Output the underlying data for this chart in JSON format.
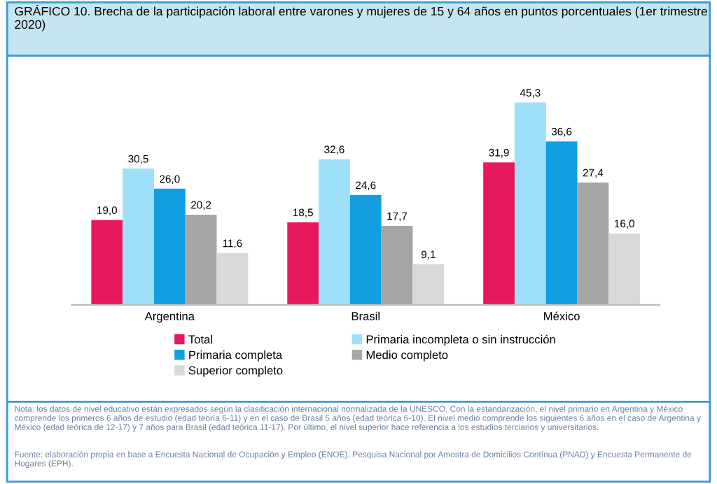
{
  "chart_data": {
    "type": "bar",
    "title": "GRÁFICO 10. Brecha de la participación laboral entre varones y mujeres de 15 y 64 años en puntos porcentuales (1er trimestre 2020)",
    "categories": [
      "Argentina",
      "Brasil",
      "México"
    ],
    "series": [
      {
        "name": "Total",
        "color": "#e8185c",
        "values": [
          19.0,
          18.5,
          31.9
        ],
        "value_labels": [
          "19,0",
          "18,5",
          "31,9"
        ]
      },
      {
        "name": "Primaria incompleta o sin instrucción",
        "color": "#9ee0fa",
        "values": [
          30.5,
          32.6,
          45.3
        ],
        "value_labels": [
          "30,5",
          "32,6",
          "45,3"
        ]
      },
      {
        "name": "Primaria completa",
        "color": "#119fe2",
        "values": [
          26.0,
          24.6,
          36.6
        ],
        "value_labels": [
          "26,0",
          "24,6",
          "36,6"
        ]
      },
      {
        "name": "Medio completo",
        "color": "#a6a6a6",
        "values": [
          20.2,
          17.7,
          27.4
        ],
        "value_labels": [
          "20,2",
          "17,7",
          "27,4"
        ]
      },
      {
        "name": "Superior completo",
        "color": "#d9d9d9",
        "values": [
          11.6,
          9.1,
          16.0
        ],
        "value_labels": [
          "11,6",
          "9,1",
          "16,0"
        ]
      }
    ],
    "legend": "bottom",
    "annotations": [
      "Nota: los datos de nivel educativo están expresados según la clasificación internacional normalizada de la UNESCO. Con la estandarización, el nivel primario en Argentina y México comprende los primeros 6 años de estudio (edad teoría 6-11) y en el caso de Brasil 5 años (edad teórica 6-10). El nivel medio comprende los siguientes 6 años en el caso de Argentina y México (edad teórica de 12-17) y 7 años para Brasil (edad teórica 11-17). Por último, el nivel superior hace referencia a los estudios terciarios y universitarios.",
      "Fuente: elaboración propia en base a Encuesta Nacional de Ocupación y Empleo (ENOE), Pesquisa Nacional por Amostra de Domicilios Contínua (PNAD) y Encuesta Permanente de Hogares (EPH)."
    ]
  }
}
